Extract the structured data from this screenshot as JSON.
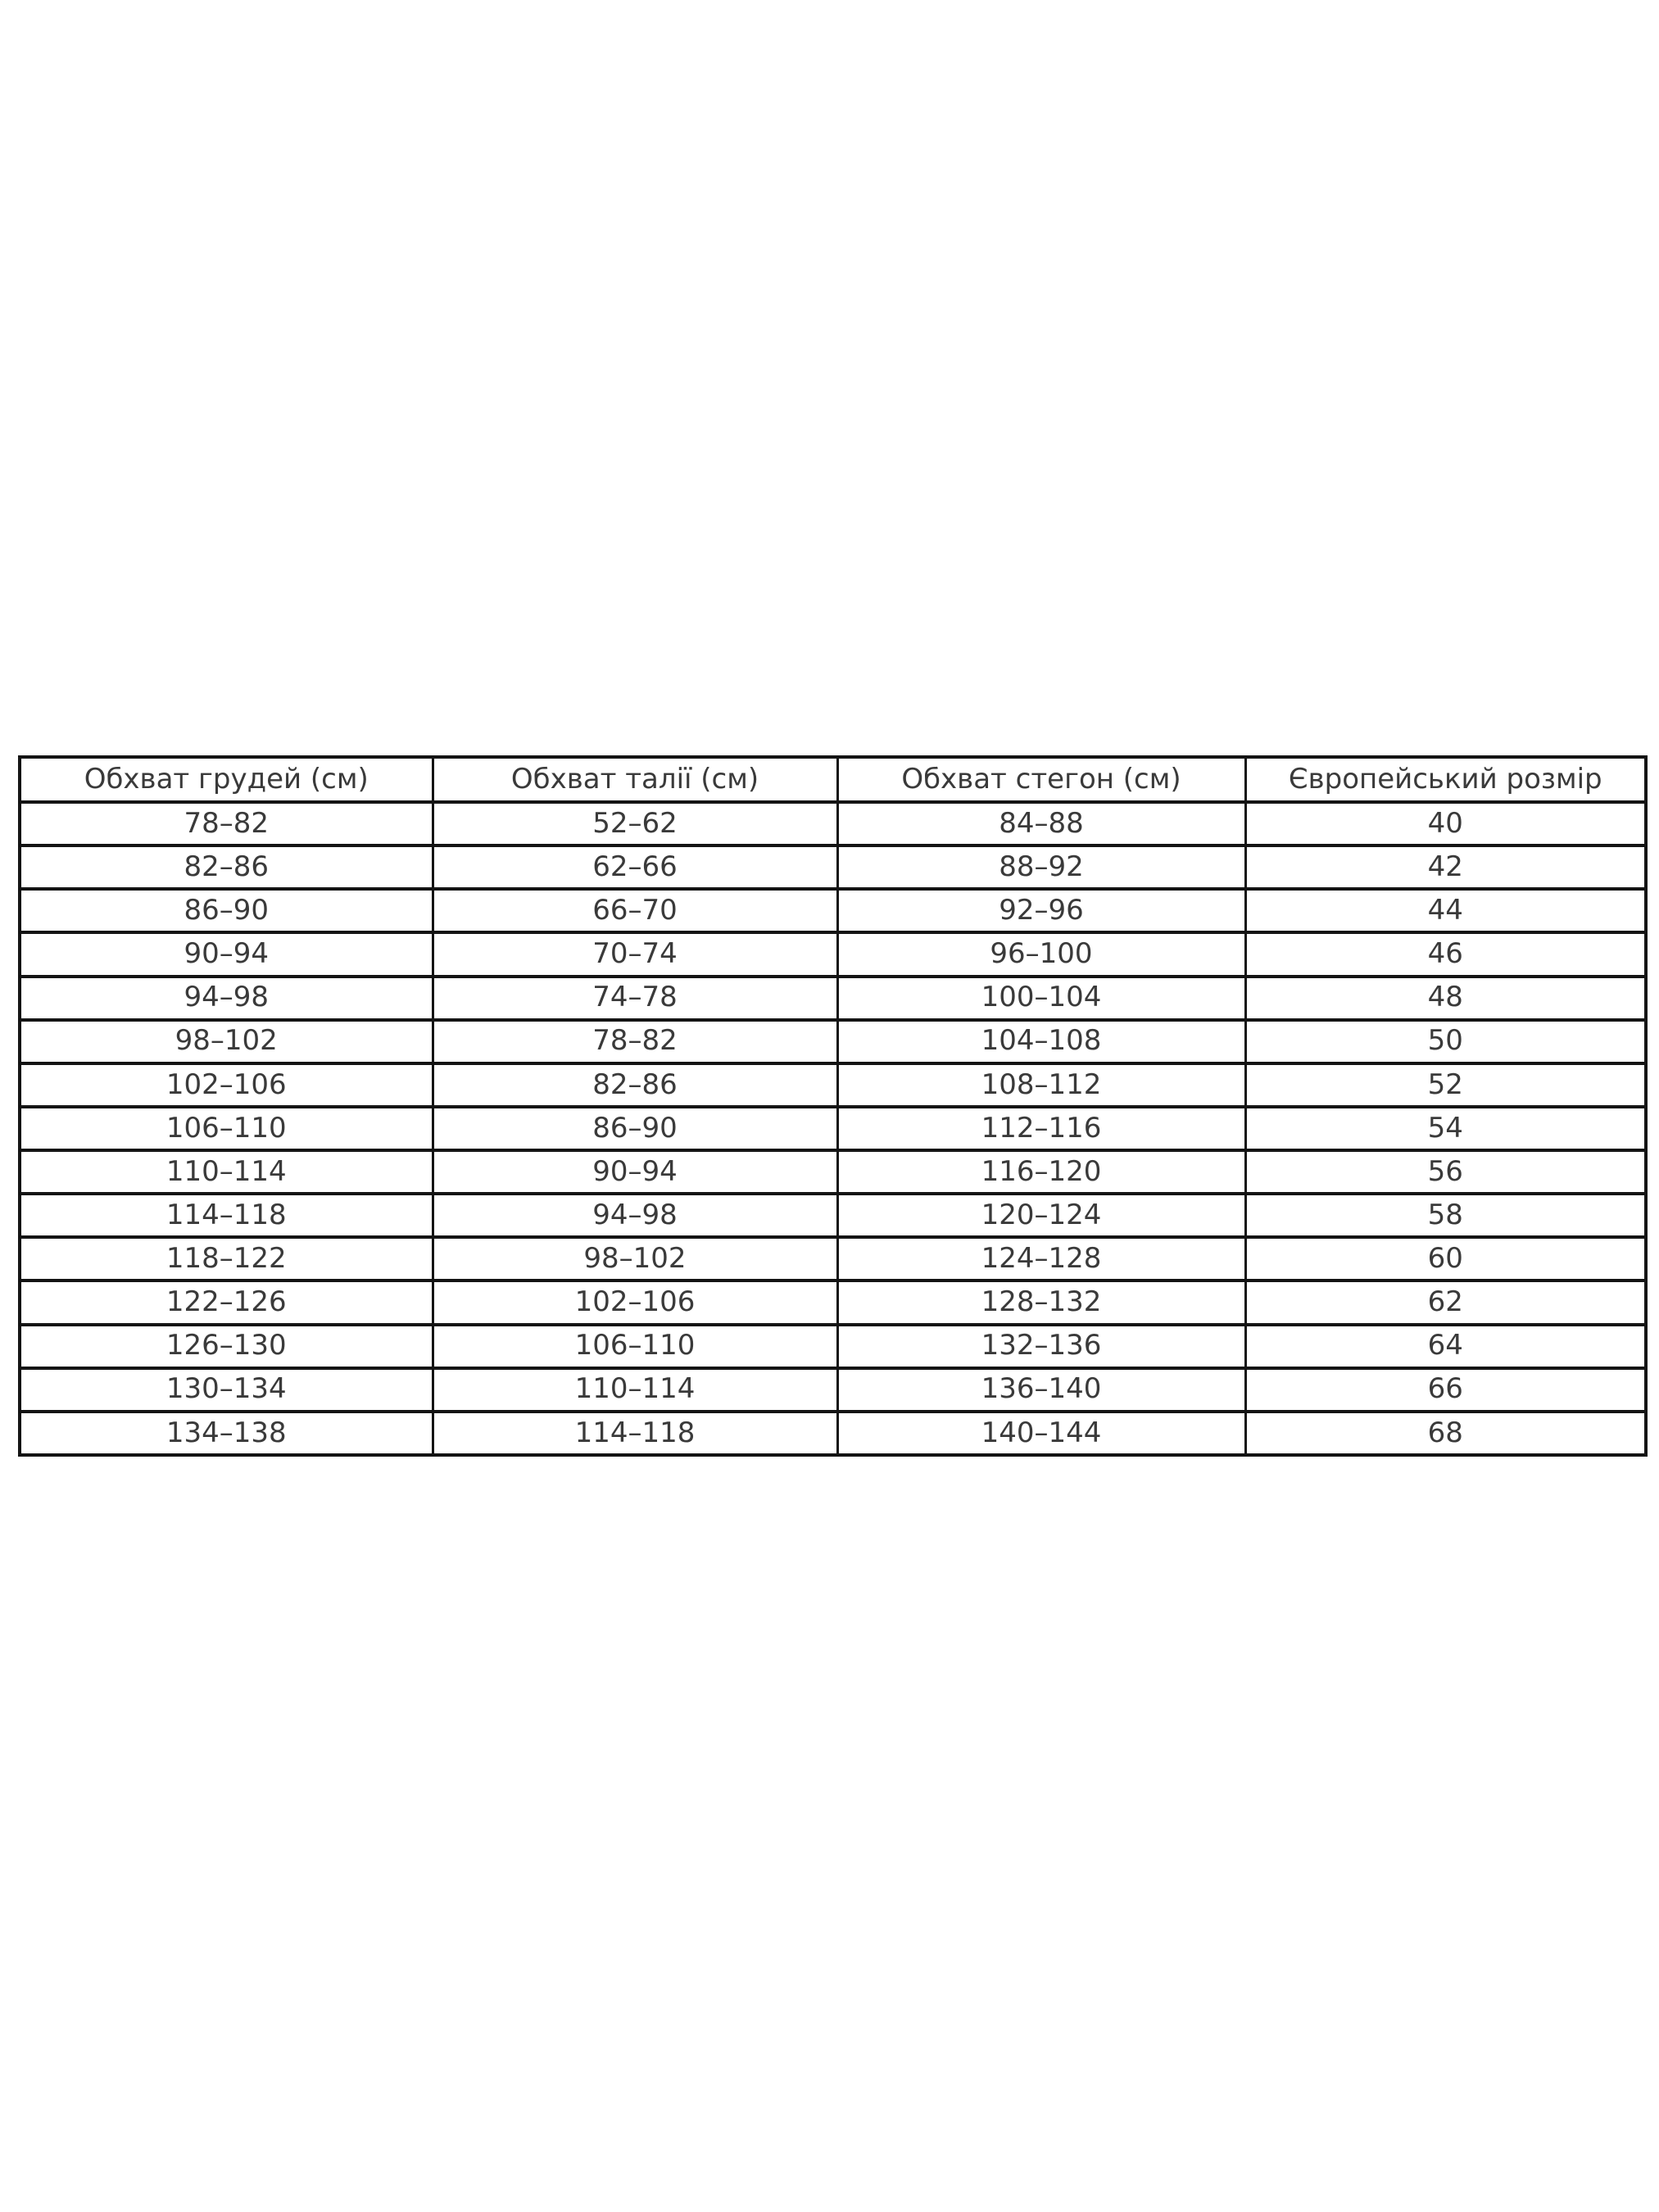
{
  "chart_data": {
    "type": "table",
    "title": "",
    "columns": [
      "Обхват грудей (см)",
      "Обхват талії (см)",
      "Обхват стегон (см)",
      "Європейський розмір"
    ],
    "rows": [
      [
        "78–82",
        "52–62",
        "84–88",
        "40"
      ],
      [
        "82–86",
        "62–66",
        "88–92",
        "42"
      ],
      [
        "86–90",
        "66–70",
        "92–96",
        "44"
      ],
      [
        "90–94",
        "70–74",
        "96–100",
        "46"
      ],
      [
        "94–98",
        "74–78",
        "100–104",
        "48"
      ],
      [
        "98–102",
        "78–82",
        "104–108",
        "50"
      ],
      [
        "102–106",
        "82–86",
        "108–112",
        "52"
      ],
      [
        "106–110",
        "86–90",
        "112–116",
        "54"
      ],
      [
        "110–114",
        "90–94",
        "116–120",
        "56"
      ],
      [
        "114–118",
        "94–98",
        "120–124",
        "58"
      ],
      [
        "118–122",
        "98–102",
        "124–128",
        "60"
      ],
      [
        "122–126",
        "102–106",
        "128–132",
        "62"
      ],
      [
        "126–130",
        "106–110",
        "132–136",
        "64"
      ],
      [
        "130–134",
        "110–114",
        "136–140",
        "66"
      ],
      [
        "134–138",
        "114–118",
        "140–144",
        "68"
      ]
    ]
  },
  "colors": {
    "background": "#ffffff",
    "table_border": "#141414",
    "text": "#3a3a3a"
  }
}
